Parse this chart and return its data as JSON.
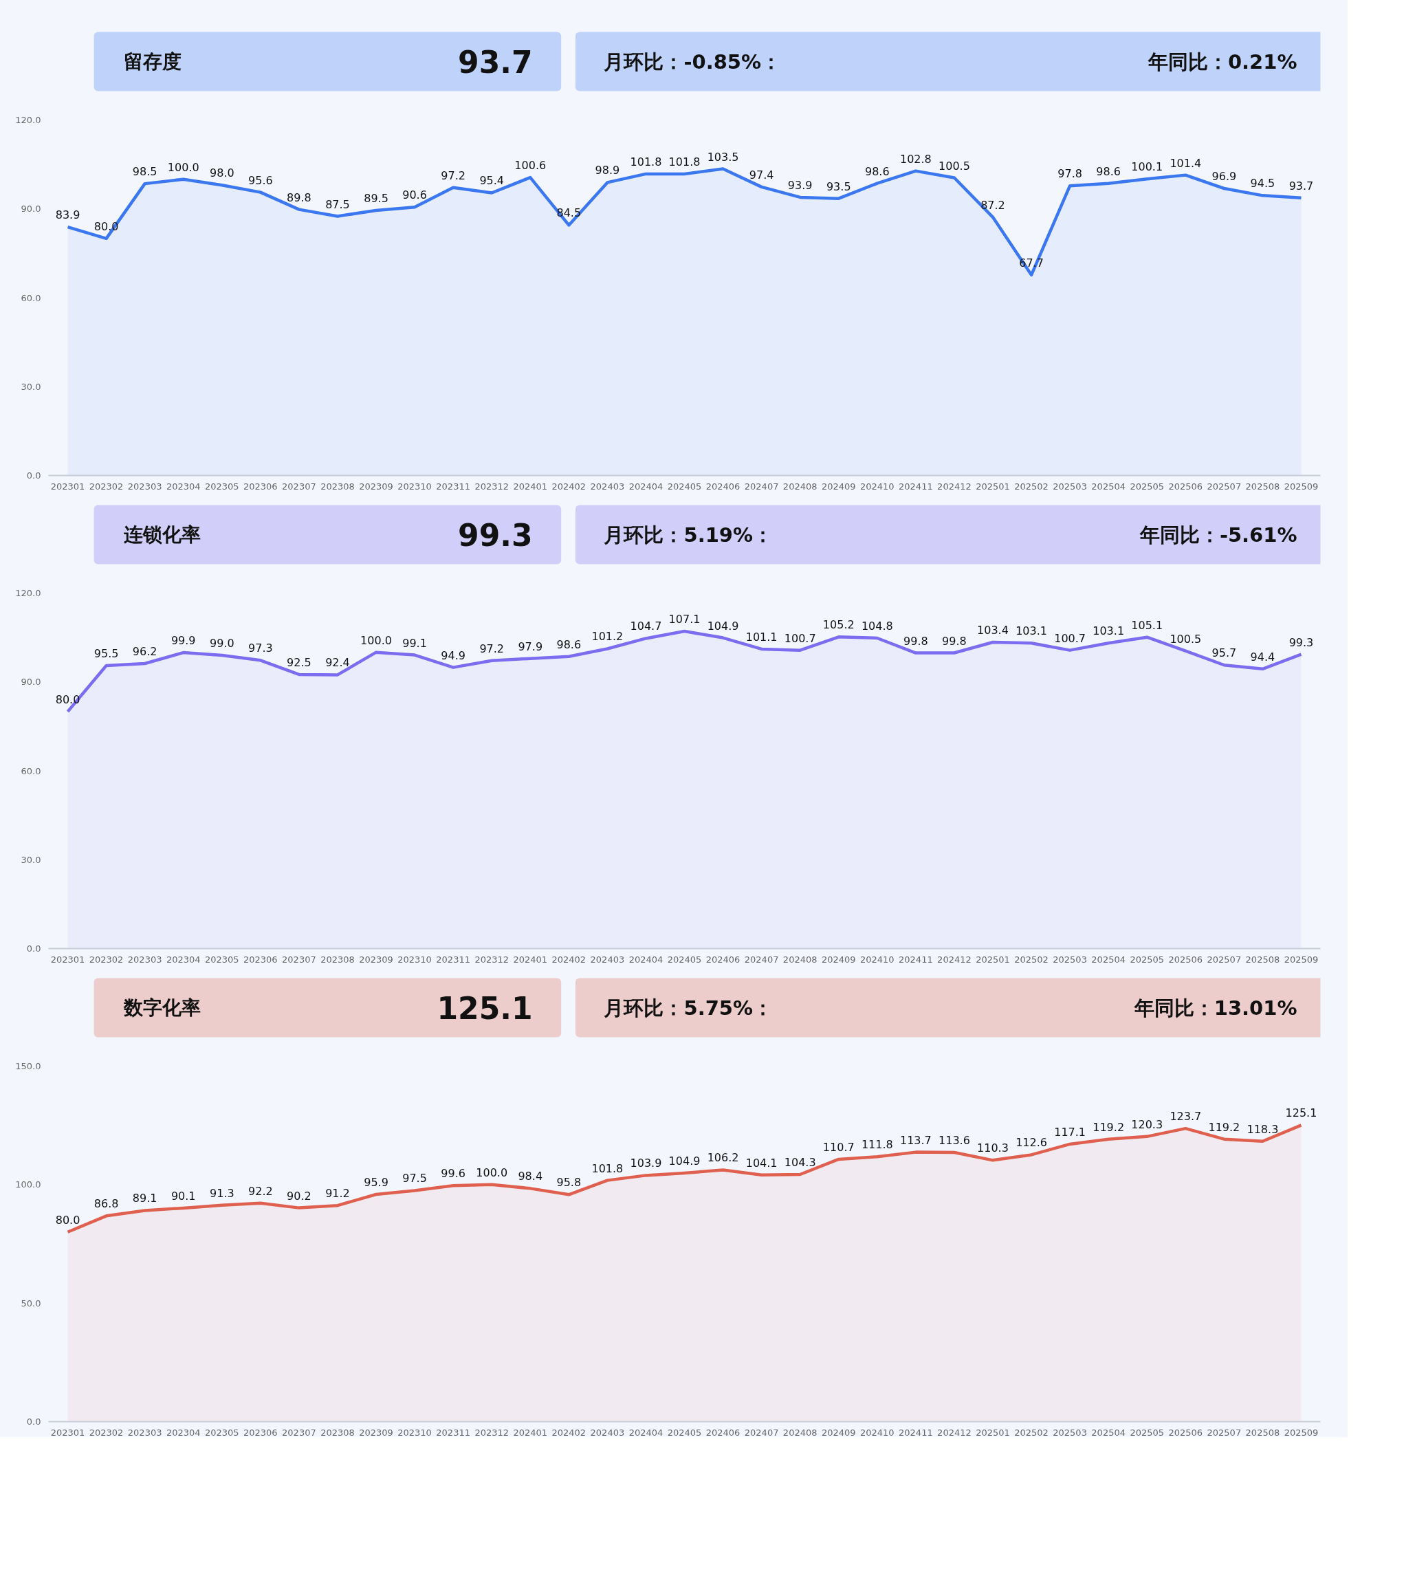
{
  "chart_data": [
    {
      "type": "area",
      "title": "留存度",
      "annotations": [
        "93.7",
        "月环比：-0.85%：",
        "年同比：0.21%"
      ],
      "categories": [
        "202301",
        "202302",
        "202303",
        "202304",
        "202305",
        "202306",
        "202307",
        "202308",
        "202309",
        "202310",
        "202311",
        "202312",
        "202401",
        "202402",
        "202403",
        "202404",
        "202405",
        "202406",
        "202407",
        "202408",
        "202409",
        "202410",
        "202411",
        "202412",
        "202501",
        "202502",
        "202503",
        "202504",
        "202505",
        "202506",
        "202507",
        "202508",
        "202509"
      ],
      "series": [
        {
          "color": "#3b78f0",
          "values": [
            83.9,
            80.0,
            98.5,
            100.0,
            98.0,
            95.6,
            89.8,
            87.5,
            89.5,
            90.6,
            97.2,
            95.4,
            100.6,
            84.5,
            98.9,
            101.8,
            101.8,
            103.5,
            97.4,
            93.9,
            93.5,
            98.6,
            102.8,
            100.5,
            87.2,
            67.7,
            97.8,
            98.6,
            100.1,
            101.4,
            96.9,
            94.5,
            93.7
          ],
          "value_labels": [
            "83.9",
            "80.0",
            "98.5",
            "100.0",
            "98.0",
            "95.6",
            "89.8",
            "87.5",
            "89.5",
            "90.6",
            "97.2",
            "95.4",
            "100.6",
            "84.5",
            "98.9",
            "101.8",
            "101.8",
            "103.5",
            "97.4",
            "93.9",
            "93.5",
            "98.6",
            "102.8",
            "100.5",
            "87.2",
            "67.7",
            "97.8",
            "98.6",
            "100.1",
            "101.4",
            "96.9",
            "94.5",
            "93.7"
          ]
        }
      ],
      "ylim": [
        0,
        120
      ],
      "yticks": [
        {
          "value": 0,
          "label": "0.0"
        },
        {
          "value": 30,
          "label": "30.0"
        },
        {
          "value": 60,
          "label": "60.0"
        },
        {
          "value": 90,
          "label": "90.0"
        },
        {
          "value": 120,
          "label": "120.0"
        }
      ],
      "marker": "none"
    },
    {
      "type": "area",
      "title": "连锁化率",
      "annotations": [
        "99.3",
        "月环比：5.19%：",
        "年同比：-5.61%"
      ],
      "categories": [
        "202301",
        "202302",
        "202303",
        "202304",
        "202305",
        "202306",
        "202307",
        "202308",
        "202309",
        "202310",
        "202311",
        "202312",
        "202401",
        "202402",
        "202403",
        "202404",
        "202405",
        "202406",
        "202407",
        "202408",
        "202409",
        "202410",
        "202411",
        "202412",
        "202501",
        "202502",
        "202503",
        "202504",
        "202505",
        "202506",
        "202507",
        "202508",
        "202509"
      ],
      "series": [
        {
          "color": "#7b6cf0",
          "values": [
            80.0,
            95.5,
            96.2,
            99.9,
            99.0,
            97.3,
            92.5,
            92.4,
            100.0,
            99.1,
            94.9,
            97.2,
            97.9,
            98.6,
            101.2,
            104.7,
            107.1,
            104.9,
            101.1,
            100.7,
            105.2,
            104.8,
            99.8,
            99.8,
            103.4,
            103.1,
            100.7,
            103.1,
            105.1,
            100.5,
            95.7,
            94.4,
            99.3
          ],
          "value_labels": [
            "80.0",
            "95.5",
            "96.2",
            "99.9",
            "99.0",
            "97.3",
            "92.5",
            "92.4",
            "100.0",
            "99.1",
            "94.9",
            "97.2",
            "97.9",
            "98.6",
            "101.2",
            "104.7",
            "107.1",
            "104.9",
            "101.1",
            "100.7",
            "105.2",
            "104.8",
            "99.8",
            "99.8",
            "103.4",
            "103.1",
            "100.7",
            "103.1",
            "105.1",
            "100.5",
            "95.7",
            "94.4",
            "99.3"
          ]
        }
      ],
      "ylim": [
        0,
        120
      ],
      "yticks": [
        {
          "value": 0,
          "label": "0.0"
        },
        {
          "value": 30,
          "label": "30.0"
        },
        {
          "value": 60,
          "label": "60.0"
        },
        {
          "value": 90,
          "label": "90.0"
        },
        {
          "value": 120,
          "label": "120.0"
        }
      ],
      "marker": "none"
    },
    {
      "type": "area",
      "title": "数字化率",
      "annotations": [
        "125.1",
        "月环比：5.75%：",
        "年同比：13.01%"
      ],
      "categories": [
        "202301",
        "202302",
        "202303",
        "202304",
        "202305",
        "202306",
        "202307",
        "202308",
        "202309",
        "202310",
        "202311",
        "202312",
        "202401",
        "202402",
        "202403",
        "202404",
        "202405",
        "202406",
        "202407",
        "202408",
        "202409",
        "202410",
        "202411",
        "202412",
        "202501",
        "202502",
        "202503",
        "202504",
        "202505",
        "202506",
        "202507",
        "202508",
        "202509"
      ],
      "series": [
        {
          "color": "#e0604f",
          "values": [
            80.0,
            86.8,
            89.1,
            90.1,
            91.3,
            92.2,
            90.2,
            91.2,
            95.9,
            97.5,
            99.6,
            100.0,
            98.4,
            95.8,
            101.8,
            103.9,
            104.9,
            106.2,
            104.1,
            104.3,
            110.7,
            111.8,
            113.7,
            113.6,
            110.3,
            112.6,
            117.1,
            119.2,
            120.3,
            123.7,
            119.2,
            118.3,
            125.1
          ],
          "value_labels": [
            "80.0",
            "86.8",
            "89.1",
            "90.1",
            "91.3",
            "92.2",
            "90.2",
            "91.2",
            "95.9",
            "97.5",
            "99.6",
            "100.0",
            "98.4",
            "95.8",
            "101.8",
            "103.9",
            "104.9",
            "106.2",
            "104.1",
            "104.3",
            "110.7",
            "111.8",
            "113.7",
            "113.6",
            "110.3",
            "112.6",
            "117.1",
            "119.2",
            "120.3",
            "123.7",
            "119.2",
            "118.3",
            "125.1"
          ]
        }
      ],
      "ylim": [
        0,
        150
      ],
      "yticks": [
        {
          "value": 0,
          "label": "0.0"
        },
        {
          "value": 50,
          "label": "50.0"
        },
        {
          "value": 100,
          "label": "100.0"
        },
        {
          "value": 150,
          "label": "150.0"
        }
      ],
      "marker": "none"
    }
  ]
}
